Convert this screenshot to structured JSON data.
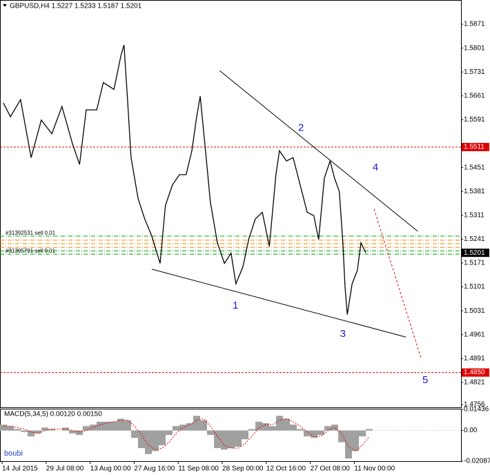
{
  "chart_data": [
    {
      "type": "line",
      "title": "GBPUSD,H4  1.5227 1.5233 1.5187 1.5201",
      "x": [
        0.03,
        0.19,
        0.42,
        0.66,
        0.89,
        1.13,
        1.36,
        1.6,
        1.76,
        1.91,
        2.15,
        2.3,
        2.54,
        2.7,
        2.77,
        2.85,
        2.93,
        3.09,
        3.24,
        3.4,
        3.59,
        3.71,
        3.87,
        4.03,
        4.18,
        4.31,
        4.42,
        4.5,
        4.62,
        4.73,
        4.89,
        5.05,
        5.2,
        5.31,
        5.47,
        5.6,
        5.75,
        5.91,
        6.07,
        6.22,
        6.3,
        6.46,
        6.61,
        6.77,
        6.93,
        7.08,
        7.19,
        7.32,
        7.45,
        7.55,
        7.66,
        7.74,
        7.79,
        7.84,
        7.95,
        8.07,
        8.15,
        8.26
      ],
      "values": [
        1.564,
        1.56,
        1.565,
        1.548,
        1.559,
        1.555,
        1.563,
        1.552,
        1.546,
        1.562,
        1.562,
        1.57,
        1.568,
        1.578,
        1.581,
        1.565,
        1.548,
        1.536,
        1.53,
        1.525,
        1.517,
        1.534,
        1.54,
        1.543,
        1.543,
        1.55,
        1.56,
        1.566,
        1.55,
        1.535,
        1.523,
        1.517,
        1.52,
        1.511,
        1.516,
        1.524,
        1.53,
        1.532,
        1.522,
        1.543,
        1.55,
        1.547,
        1.548,
        1.54,
        1.532,
        1.531,
        1.524,
        1.542,
        1.547,
        1.542,
        1.538,
        1.523,
        1.51,
        1.502,
        1.511,
        1.515,
        1.523,
        1.5201
      ],
      "color": "#000000",
      "xlim": [
        -0.047,
        10.423
      ],
      "xticks": [
        {
          "value": 0,
          "label": "14 Jul 2015"
        },
        {
          "value": 1,
          "label": "29 Jul 08:00"
        },
        {
          "value": 2,
          "label": "13 Aug 00:00"
        },
        {
          "value": 3,
          "label": "27 Aug 16:00"
        },
        {
          "value": 4,
          "label": "11 Sep 08:00"
        },
        {
          "value": 5,
          "label": "28 Sep 00:00"
        },
        {
          "value": 6,
          "label": "12 Oct 16:00"
        },
        {
          "value": 7,
          "label": "27 Oct 08:00"
        },
        {
          "value": 8,
          "label": "11 Nov 00:00"
        }
      ],
      "ylim": [
        1.4748,
        1.5942
      ],
      "yticks": [
        1.5871,
        1.5801,
        1.5731,
        1.5661,
        1.5591,
        1.5451,
        1.5381,
        1.5311,
        1.5241,
        1.5171,
        1.5101,
        1.5031,
        1.4961,
        1.4891,
        1.4821,
        1.4756
      ],
      "last_price": 1.5201,
      "hlines": [
        {
          "value": 1.5511,
          "color": "#e00000"
        },
        {
          "value": 1.485,
          "label": "1.4850",
          "color": "#e00000"
        }
      ],
      "order_lines": [
        {
          "value": 1.525,
          "color": "#00a000",
          "label": "#31392531 sell 0.01"
        },
        {
          "value": 1.5238,
          "color": "#ff8000"
        },
        {
          "value": 1.5228,
          "color": "#ff8000"
        },
        {
          "value": 1.5217,
          "color": "#ff8000"
        },
        {
          "value": 1.5207,
          "color": "#00a000"
        },
        {
          "value": 1.5197,
          "color": "#00a000",
          "label": "#31395791 sell 0.01"
        }
      ],
      "trendlines": [
        {
          "x": [
            4.94,
            9.44
          ],
          "y": [
            1.5735,
            1.5264
          ],
          "color": "#000000",
          "dashed": false
        },
        {
          "x": [
            3.4,
            9.17
          ],
          "y": [
            1.5153,
            1.4954
          ],
          "color": "#000000",
          "dashed": false
        },
        {
          "x": [
            8.45,
            9.51
          ],
          "y": [
            1.5329,
            1.4894
          ],
          "color": "#e00000",
          "dashed": true
        }
      ],
      "wave_labels": [
        {
          "text": "1",
          "x": 5.3,
          "y": 1.5045
        },
        {
          "text": "2",
          "x": 6.79,
          "y": 1.5567
        },
        {
          "text": "3",
          "x": 7.74,
          "y": 1.4962
        },
        {
          "text": "4",
          "x": 8.48,
          "y": 1.545
        },
        {
          "text": "5",
          "x": 9.61,
          "y": 1.4827
        }
      ]
    },
    {
      "type": "macd",
      "title": "MACD(5,34,5) 0.00120 0.00150",
      "watermark": "boubi",
      "x": [
        0.031,
        0.188,
        0.345,
        0.502,
        0.658,
        0.815,
        0.972,
        1.129,
        1.285,
        1.442,
        1.599,
        1.755,
        1.912,
        2.069,
        2.226,
        2.382,
        2.539,
        2.696,
        2.853,
        3.009,
        3.166,
        3.323,
        3.48,
        3.636,
        3.793,
        3.95,
        4.107,
        4.263,
        4.42,
        4.577,
        4.734,
        4.89,
        5.047,
        5.204,
        5.361,
        5.517,
        5.674,
        5.831,
        5.987,
        6.144,
        6.301,
        6.458,
        6.614,
        6.771,
        6.928,
        7.085,
        7.241,
        7.398,
        7.555,
        7.712,
        7.868,
        8.025,
        8.182,
        8.339
      ],
      "xlim": [
        -0.047,
        10.423
      ],
      "histogram": {
        "color": "#a0a0a0",
        "values": [
          0.004,
          0.003,
          0.001,
          -0.001,
          -0.004,
          -0.002,
          0.002,
          0.001,
          0,
          0.002,
          -0.002,
          -0.003,
          0.003,
          0.004,
          0.006,
          0.006,
          0.006,
          0.008,
          0.007,
          -0.005,
          -0.012,
          -0.016,
          -0.014,
          -0.01,
          -0.003,
          0.003,
          0.004,
          0.005,
          0.01,
          0.007,
          -0.003,
          -0.012,
          -0.013,
          -0.012,
          -0.011,
          -0.006,
          0.001,
          0.006,
          0.005,
          0.003,
          0.01,
          0.008,
          0.004,
          0.001,
          -0.004,
          -0.005,
          -0.003,
          0.003,
          0.004,
          -0.008,
          -0.019,
          -0.014,
          -0.004,
          0.001
        ]
      },
      "signal": {
        "color": "#e00000",
        "values": [
          0.003,
          0.003,
          0.002,
          0.001,
          -0.001,
          -0.002,
          0,
          0.001,
          0.001,
          0.001,
          0,
          -0.001,
          0,
          0.002,
          0.004,
          0.005,
          0.006,
          0.007,
          0.007,
          0.003,
          -0.003,
          -0.01,
          -0.013,
          -0.012,
          -0.008,
          -0.002,
          0.002,
          0.004,
          0.007,
          0.008,
          0.003,
          -0.004,
          -0.01,
          -0.012,
          -0.012,
          -0.009,
          -0.004,
          0.002,
          0.004,
          0.004,
          0.007,
          0.008,
          0.006,
          0.003,
          -0.001,
          -0.004,
          -0.004,
          0,
          0.002,
          -0.002,
          -0.011,
          -0.014,
          -0.01,
          -0.004
        ]
      },
      "ylim": [
        -0.02087,
        0.01436
      ],
      "yticks": [
        0.01436,
        {
          "value": 0,
          "label": "0.00"
        },
        -0.02087
      ]
    }
  ]
}
